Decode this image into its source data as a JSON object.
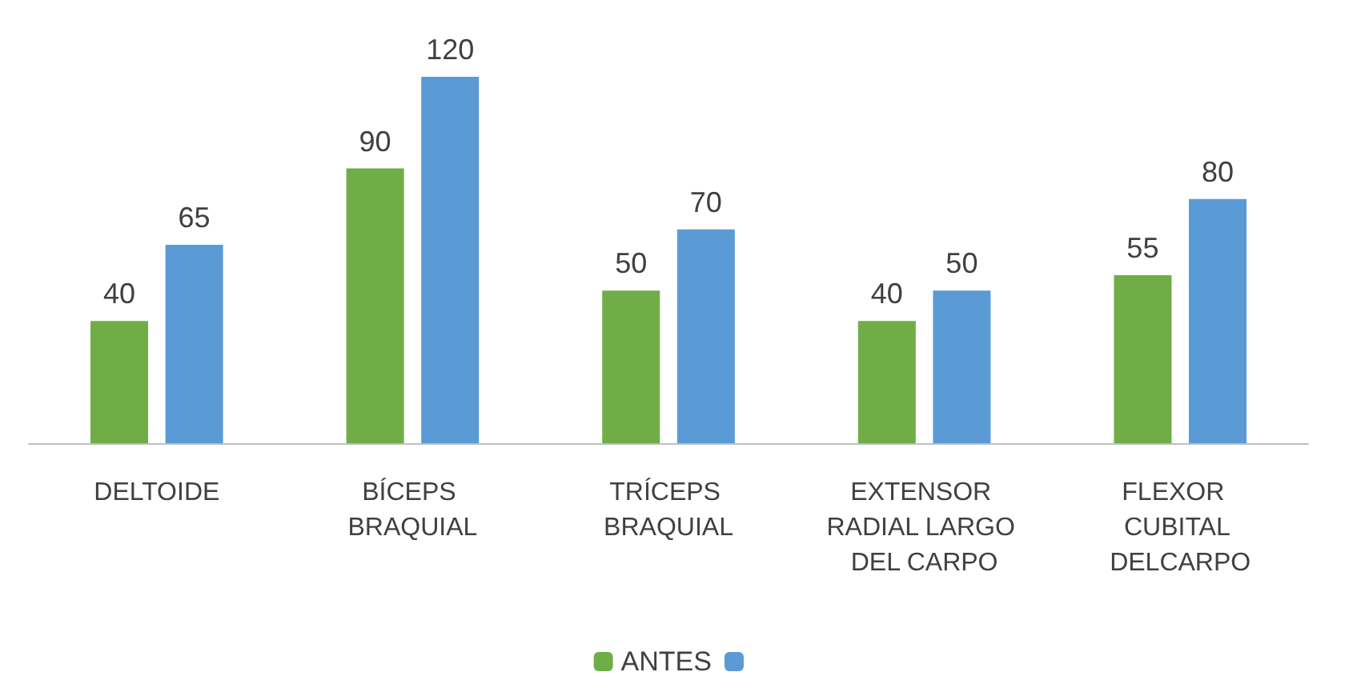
{
  "chart_data": {
    "type": "bar",
    "categories": [
      "DELTOIDE",
      "BÍCEPS BRAQUIAL",
      "TRÍCEPS BRAQUIAL",
      "EXTENSOR RADIAL LARGO DEL CARPO",
      "FLEXOR  CUBITAL DELCARPO"
    ],
    "series": [
      {
        "name": "ANTES",
        "color": "#70ad47",
        "values": [
          40,
          90,
          50,
          40,
          55
        ]
      },
      {
        "color": "#5b9bd5",
        "values": [
          65,
          120,
          70,
          50,
          80
        ]
      }
    ],
    "data_labels": true,
    "legend": "bottom",
    "grid": false
  }
}
